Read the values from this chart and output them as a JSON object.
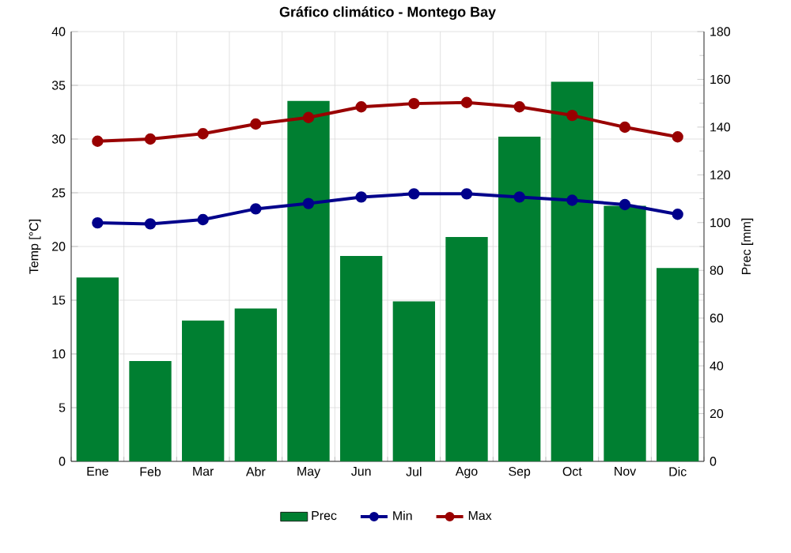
{
  "chart_data": {
    "type": "line",
    "title": "Gráfico climático - Montego Bay",
    "ylabel": "Temp [°C]",
    "y2label": "Prec [mm]",
    "categories": [
      "Ene",
      "Feb",
      "Mar",
      "Abr",
      "May",
      "Jun",
      "Jul",
      "Ago",
      "Sep",
      "Oct",
      "Nov",
      "Dic"
    ],
    "series": [
      {
        "name": "Prec",
        "type": "bar",
        "axis": "y2",
        "color": "#007f31",
        "values": [
          77,
          42,
          59,
          64,
          151,
          86,
          67,
          94,
          136,
          159,
          107,
          81
        ]
      },
      {
        "name": "Min",
        "color": "#00008b",
        "values": [
          22.2,
          22.1,
          22.5,
          23.5,
          24.0,
          24.6,
          24.9,
          24.9,
          24.6,
          24.3,
          23.9,
          23.0
        ]
      },
      {
        "name": "Max",
        "color": "#990000",
        "values": [
          29.8,
          30.0,
          30.5,
          31.4,
          32.0,
          33.0,
          33.3,
          33.4,
          33.0,
          32.2,
          31.1,
          30.2
        ]
      }
    ],
    "ylim": [
      0,
      40
    ],
    "yticks": [
      0,
      5,
      10,
      15,
      20,
      25,
      30,
      35,
      40
    ],
    "y2lim": [
      0,
      180
    ],
    "y2ticks": [
      0,
      20,
      40,
      60,
      80,
      100,
      120,
      140,
      160,
      180
    ],
    "grid": true,
    "legend": "bottom",
    "marker": "circle",
    "line_style": "solid"
  }
}
